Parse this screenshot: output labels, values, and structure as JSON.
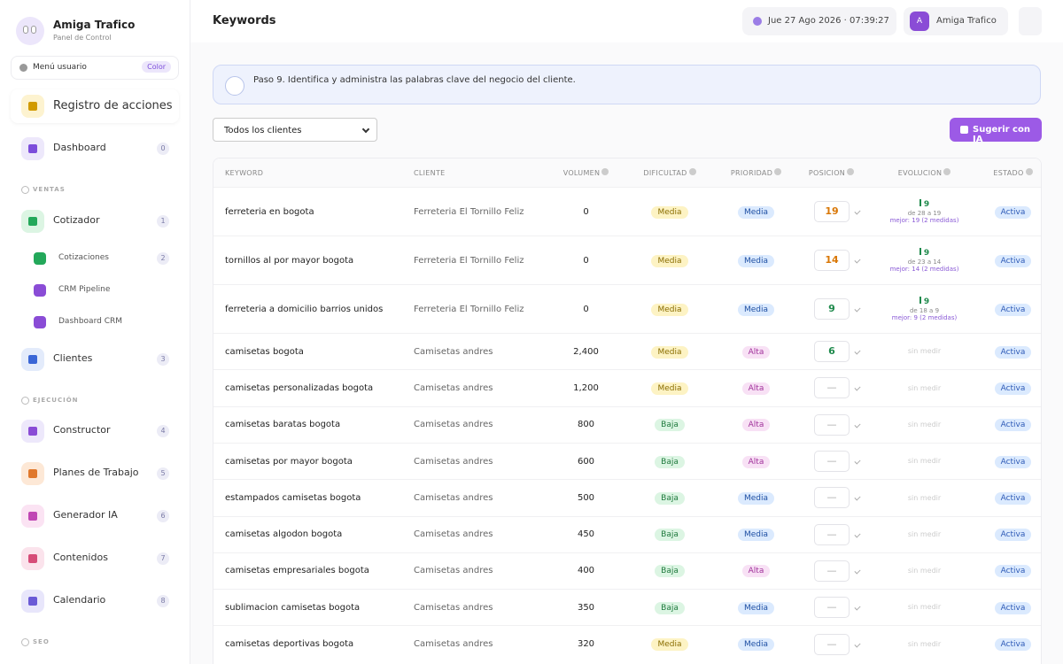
{
  "sidebar": {
    "brand": {
      "name": "Amiga Trafico",
      "subtitle": "Panel de Control"
    },
    "user_menu": {
      "label": "Menú usuario",
      "badge": "Color"
    },
    "top_items": [
      {
        "label": "Registro de acciones"
      },
      {
        "label": "Dashboard",
        "badge": 0
      }
    ],
    "sections": [
      {
        "title": "VENTAS",
        "items": [
          {
            "label": "Cotizador",
            "badge": 1,
            "children": [
              {
                "label": "Cotizaciones",
                "badge": 2
              },
              {
                "label": "CRM Pipeline"
              },
              {
                "label": "Dashboard CRM"
              }
            ]
          },
          {
            "label": "Clientes",
            "badge": 3
          }
        ]
      },
      {
        "title": "EJECUCIÓN",
        "items": [
          {
            "label": "Constructor",
            "badge": 4
          },
          {
            "label": "Planes de Trabajo",
            "badge": 5
          },
          {
            "label": "Generador IA",
            "badge": 6
          },
          {
            "label": "Contenidos",
            "badge": 7
          },
          {
            "label": "Calendario",
            "badge": 8
          }
        ]
      },
      {
        "title": "SEO",
        "items": []
      }
    ]
  },
  "header": {
    "title": "Keywords",
    "datetime": "Jue 27 Ago 2026 · 07:39:27",
    "avatar": "A",
    "user": "Amiga Trafico"
  },
  "banner": {
    "text": "Paso 9. Identifica y administra las palabras clave del negocio del cliente."
  },
  "toolbar": {
    "filter": "Todos los clientes",
    "button": "Sugerir con IA"
  },
  "table": {
    "columns": [
      "KEYWORD",
      "CLIENTE",
      "VOLUMEN",
      "DIFICULTAD",
      "PRIORIDAD",
      "POSICION",
      "EVOLUCION",
      "ESTADO"
    ],
    "rows": [
      {
        "keyword": "ferreteria en bogota",
        "client": "Ferreteria El Tornillo Feliz",
        "volume": 0,
        "difficulty": "Media",
        "priority": "Media",
        "position": 19,
        "evolution": {
          "change": 9,
          "range": "de 28 a 19",
          "best": "mejor: 19 (2 medidas)"
        },
        "status": "Activa"
      },
      {
        "keyword": "tornillos al por mayor bogota",
        "client": "Ferreteria El Tornillo Feliz",
        "volume": 0,
        "difficulty": "Media",
        "priority": "Media",
        "position": 14,
        "evolution": {
          "change": 9,
          "range": "de 23 a 14",
          "best": "mejor: 14 (2 medidas)"
        },
        "status": "Activa"
      },
      {
        "keyword": "ferreteria a domicilio barrios unidos",
        "client": "Ferreteria El Tornillo Feliz",
        "volume": 0,
        "difficulty": "Media",
        "priority": "Media",
        "position": 9,
        "evolution": {
          "change": 9,
          "range": "de 18 a 9",
          "best": "mejor: 9 (2 medidas)"
        },
        "status": "Activa"
      },
      {
        "keyword": "camisetas bogota",
        "client": "Camisetas andres",
        "volume": "2,400",
        "difficulty": "Media",
        "priority": "Alta",
        "position": 6,
        "evolution": "sin medir",
        "status": "Activa"
      },
      {
        "keyword": "camisetas personalizadas bogota",
        "client": "Camisetas andres",
        "volume": "1,200",
        "difficulty": "Media",
        "priority": "Alta",
        "position": "—",
        "evolution": "sin medir",
        "status": "Activa"
      },
      {
        "keyword": "camisetas baratas bogota",
        "client": "Camisetas andres",
        "volume": 800,
        "difficulty": "Baja",
        "priority": "Alta",
        "position": "—",
        "evolution": "sin medir",
        "status": "Activa"
      },
      {
        "keyword": "camisetas por mayor bogota",
        "client": "Camisetas andres",
        "volume": 600,
        "difficulty": "Baja",
        "priority": "Alta",
        "position": "—",
        "evolution": "sin medir",
        "status": "Activa"
      },
      {
        "keyword": "estampados camisetas bogota",
        "client": "Camisetas andres",
        "volume": 500,
        "difficulty": "Baja",
        "priority": "Media",
        "position": "—",
        "evolution": "sin medir",
        "status": "Activa"
      },
      {
        "keyword": "camisetas algodon bogota",
        "client": "Camisetas andres",
        "volume": 450,
        "difficulty": "Baja",
        "priority": "Media",
        "position": "—",
        "evolution": "sin medir",
        "status": "Activa"
      },
      {
        "keyword": "camisetas empresariales bogota",
        "client": "Camisetas andres",
        "volume": 400,
        "difficulty": "Baja",
        "priority": "Alta",
        "position": "—",
        "evolution": "sin medir",
        "status": "Activa"
      },
      {
        "keyword": "sublimacion camisetas bogota",
        "client": "Camisetas andres",
        "volume": 350,
        "difficulty": "Baja",
        "priority": "Media",
        "position": "—",
        "evolution": "sin medir",
        "status": "Activa"
      },
      {
        "keyword": "camisetas deportivas bogota",
        "client": "Camisetas andres",
        "volume": 320,
        "difficulty": "Media",
        "priority": "Media",
        "position": "—",
        "evolution": "sin medir",
        "status": "Activa"
      }
    ]
  }
}
